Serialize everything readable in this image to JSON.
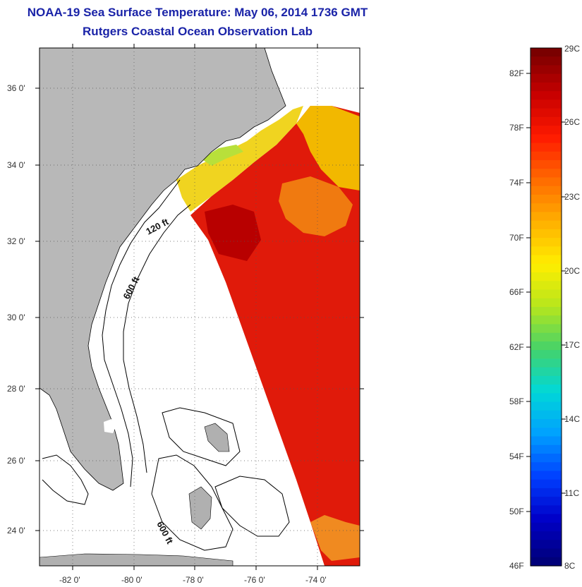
{
  "header": {
    "title": "NOAA-19 Sea Surface Temperature:  May 06, 2014 1736 GMT",
    "subtitle": "Rutgers Coastal Ocean Observation Lab"
  },
  "map": {
    "lat_labels": [
      "36 0'",
      "34 0'",
      "32 0'",
      "30 0'",
      "28 0'",
      "26 0'",
      "24 0'"
    ],
    "lon_labels": [
      "-82 0'",
      "-80 0'",
      "-78 0'",
      "-76 0'",
      "-74 0'"
    ],
    "contour_labels": [
      "120 ft",
      "600 ft",
      "600 ft"
    ]
  },
  "colorbar": {
    "fahrenheit_labels": [
      "82F",
      "78F",
      "74F",
      "70F",
      "66F",
      "62F",
      "58F",
      "54F",
      "50F",
      "46F"
    ],
    "celsius_labels": [
      "29C",
      "26C",
      "23C",
      "20C",
      "17C",
      "14C",
      "11C",
      "8C"
    ],
    "colors": [
      "#7a0000",
      "#c80000",
      "#ff1a00",
      "#ff6a00",
      "#ffb000",
      "#ffee00",
      "#b5e61d",
      "#44d26a",
      "#00d8d8",
      "#00a0ff",
      "#0040ff",
      "#0000c8",
      "#00007a"
    ]
  }
}
